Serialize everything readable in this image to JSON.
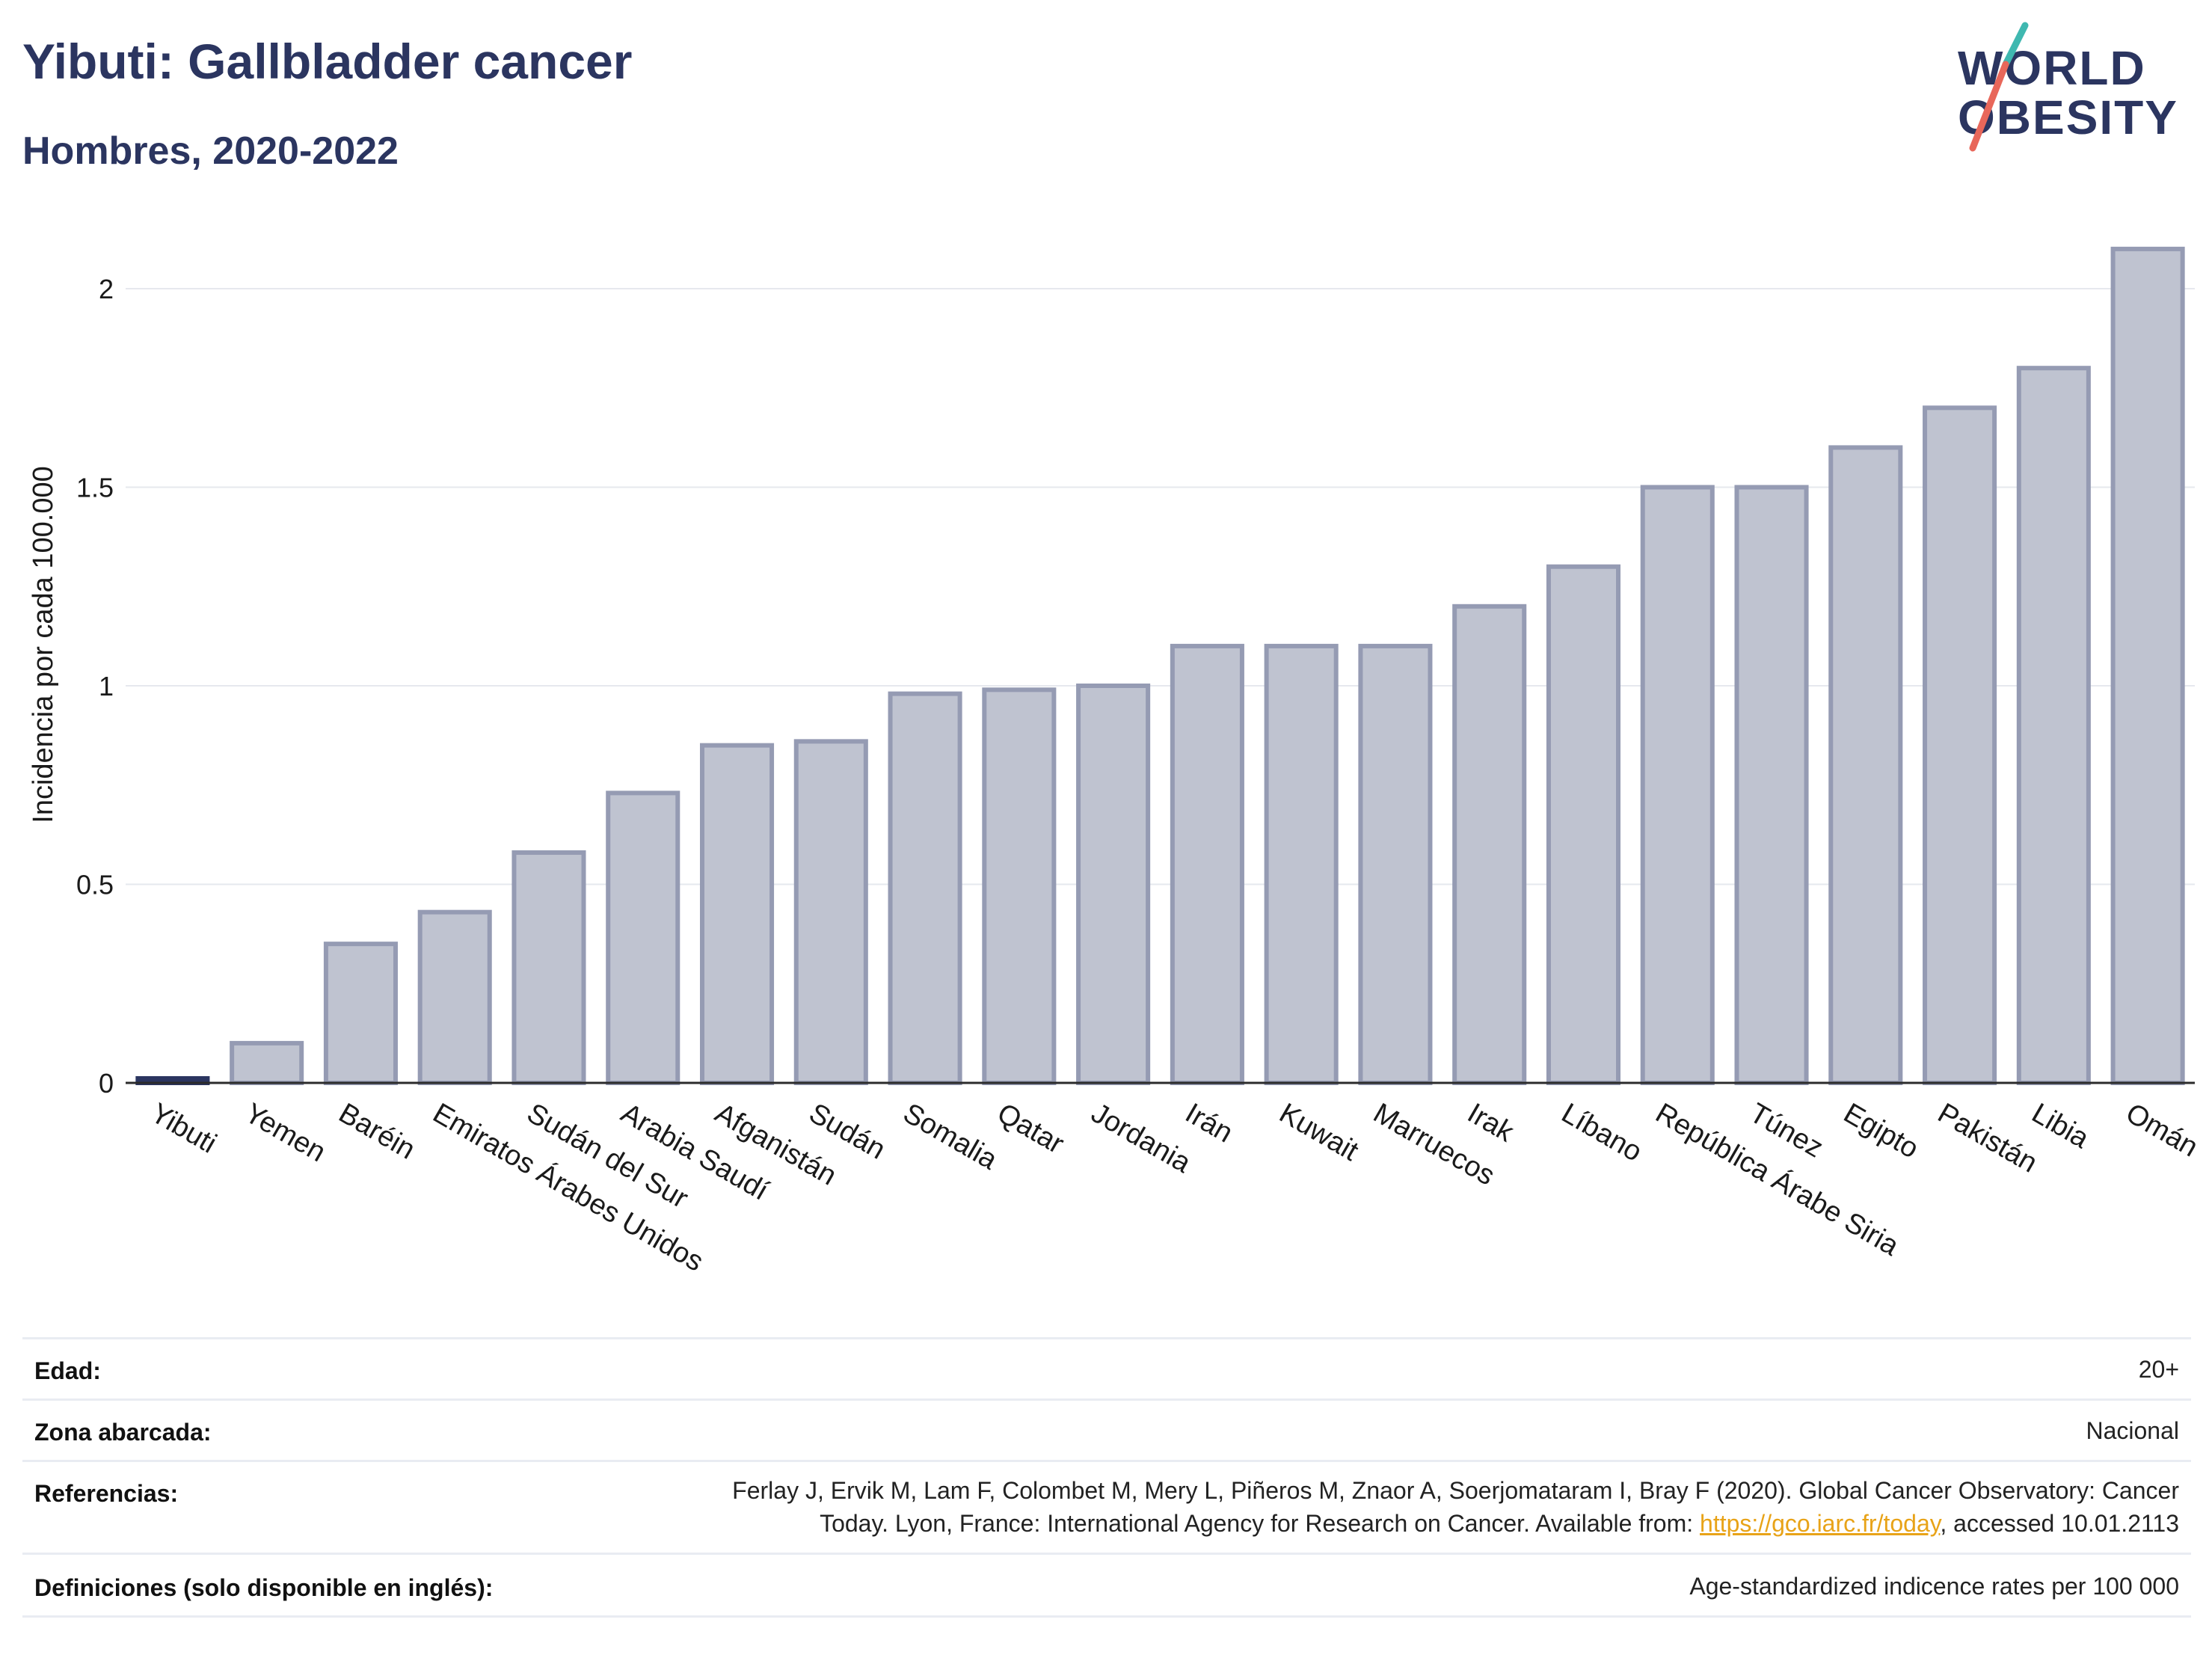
{
  "header": {
    "title": "Yibuti: Gallbladder cancer",
    "subtitle": "Hombres, 2020-2022"
  },
  "logo": {
    "line1": "WORLD",
    "line2": "OBESITY"
  },
  "chart_data": {
    "type": "bar",
    "title": "Yibuti: Gallbladder cancer",
    "subtitle": "Hombres, 2020-2022",
    "xlabel": "",
    "ylabel": "Incidencia por cada 100.000",
    "ylim": [
      0,
      2.2
    ],
    "yticks": [
      0,
      0.5,
      1,
      1.5,
      2
    ],
    "ytick_labels": [
      "0",
      "0.5",
      "1",
      "1.5",
      "2"
    ],
    "grid": true,
    "highlight_category": "Yibuti",
    "colors": {
      "bar_fill": "#bfc3d0",
      "bar_stroke": "#959bb3",
      "highlight": "#2b3560"
    },
    "categories": [
      "Yibuti",
      "Yemen",
      "Baréin",
      "Emiratos Árabes Unidos",
      "Sudán del Sur",
      "Arabia Saudí",
      "Afganistán",
      "Sudán",
      "Somalia",
      "Qatar",
      "Jordania",
      "Irán",
      "Kuwait",
      "Marruecos",
      "Irak",
      "Líbano",
      "República Árabe Siria",
      "Túnez",
      "Egipto",
      "Pakistán",
      "Libia",
      "Omán"
    ],
    "values": [
      0.0,
      0.1,
      0.35,
      0.43,
      0.58,
      0.73,
      0.85,
      0.86,
      0.98,
      0.99,
      1.0,
      1.1,
      1.1,
      1.1,
      1.2,
      1.3,
      1.5,
      1.5,
      1.6,
      1.7,
      1.8,
      2.1
    ]
  },
  "meta": {
    "rows": [
      {
        "key": "Edad:",
        "value": "20+"
      },
      {
        "key": "Zona abarcada:",
        "value": "Nacional"
      },
      {
        "key": "Referencias:",
        "value_line1": "Ferlay J, Ervik M, Lam F, Colombet M, Mery L, Piñeros M, Znaor A, Soerjomataram I, Bray F (2020). Global Cancer Observatory: Cancer",
        "value_line2_pre": "Today. Lyon, France: International Agency for Research on Cancer. Available from: ",
        "link": "https://gco.iarc.fr/today",
        "value_line2_post": ", accessed 10.01.2113"
      },
      {
        "key": "Definiciones (solo disponible en inglés):",
        "value": "Age-standardized indicence rates per 100 000"
      }
    ]
  }
}
